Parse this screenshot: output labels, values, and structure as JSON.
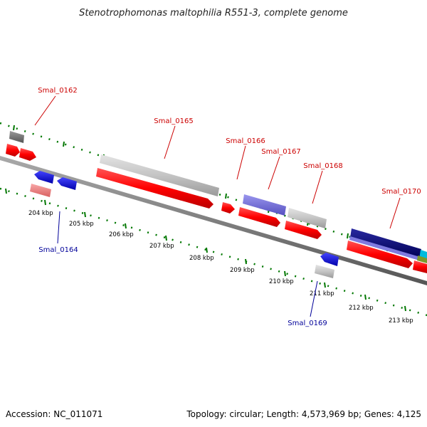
{
  "title": "Stenotrophomonas maltophilia R551-3, complete genome",
  "footer": {
    "accession": "Accession: NC_011071",
    "info": "Topology: circular; Length: 4,573,969 bp; Genes: 4,125"
  },
  "colors": {
    "label_upper": "#cc0000",
    "label_lower": "#000099",
    "tick": "#007700",
    "backbone": "#808080",
    "cds_red": "#ff0000",
    "gray": "#c0c0c0",
    "dark_gray": "#707070",
    "blue": "#0000ee",
    "purple": "#6f6ad6",
    "pink": "#f08080",
    "navy": "#000080",
    "cyan": "#00bbdd",
    "olive": "#7a9a2a"
  },
  "ticks": {
    "labels": [
      "204 kbp",
      "205 kbp",
      "206 kbp",
      "207 kbp",
      "208 kbp",
      "209 kbp",
      "210 kbp",
      "211 kbp",
      "212 kbp",
      "213 kbp"
    ]
  },
  "gene_labels": [
    {
      "id": "smal-0162",
      "text": "Smal_0162",
      "side": "upper"
    },
    {
      "id": "smal-0165",
      "text": "Smal_0165",
      "side": "upper"
    },
    {
      "id": "smal-0166",
      "text": "Smal_0166",
      "side": "upper"
    },
    {
      "id": "smal-0167",
      "text": "Smal_0167",
      "side": "upper"
    },
    {
      "id": "smal-0168",
      "text": "Smal_0168",
      "side": "upper"
    },
    {
      "id": "smal-0170",
      "text": "Smal_0170",
      "side": "upper"
    },
    {
      "id": "smal-0164",
      "text": "Smal_0164",
      "side": "lower"
    },
    {
      "id": "smal-0169",
      "text": "Smal_0169",
      "side": "lower"
    }
  ]
}
